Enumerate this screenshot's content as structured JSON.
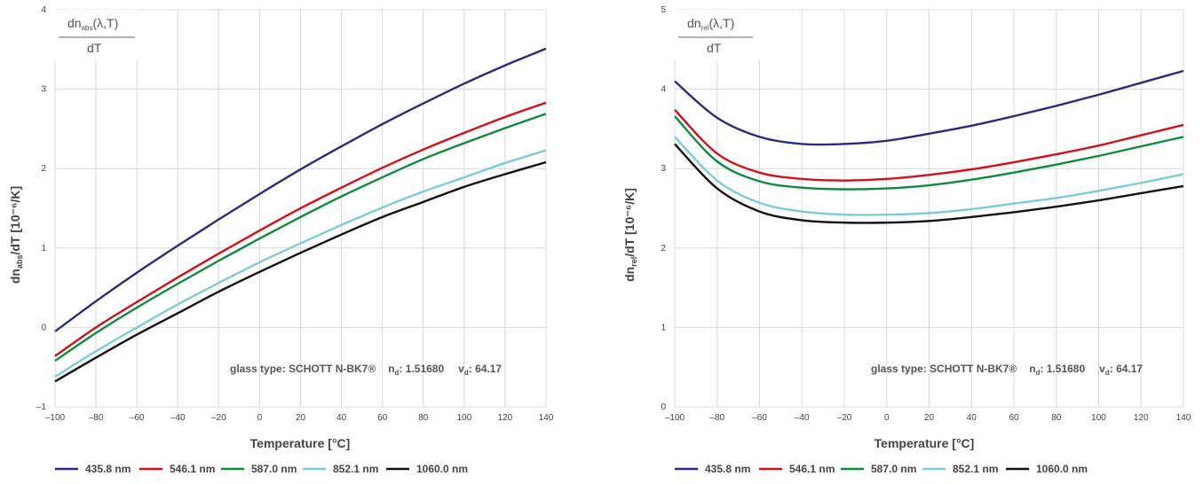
{
  "legend_colors": [
    "#2e2a7a",
    "#d0101c",
    "#0f8a3c",
    "#7ecbd6",
    "#111111"
  ],
  "chart_data": [
    {
      "type": "line",
      "ylabel": {
        "main": "dn",
        "sub": "abs",
        "rest": "/dT [10⁻⁶/K]"
      },
      "xlabel": "Temperature [°C]",
      "formula": {
        "top_main": "dn",
        "top_sub": "abs",
        "top_rest": "(λ,T)",
        "bottom": "dT"
      },
      "annotation": {
        "glass": "glass type: SCHOTT N-BK7®",
        "nd_label": "n",
        "nd_sub": "d",
        "nd_value": ": 1.51680",
        "vd_label": "v",
        "vd_sub": "d",
        "vd_value": ": 64.17"
      },
      "xlim": [
        -100,
        140
      ],
      "ylim": [
        -1,
        4
      ],
      "x_ticks": [
        -100,
        -80,
        -60,
        -40,
        -20,
        0,
        20,
        40,
        60,
        80,
        100,
        120,
        140
      ],
      "x_tick_labels": [
        "–100",
        "–80",
        "–60",
        "–40",
        "–20",
        "0",
        "20",
        "40",
        "60",
        "80",
        "100",
        "120",
        "140"
      ],
      "y_ticks": [
        -1,
        0,
        1,
        2,
        3,
        4
      ],
      "y_tick_labels": [
        "–1",
        "0",
        "1",
        "2",
        "3",
        "4"
      ],
      "grid": true,
      "x": [
        -100,
        -80,
        -60,
        -40,
        -20,
        0,
        20,
        40,
        60,
        80,
        100,
        120,
        140
      ],
      "series": [
        {
          "name": "435.8 nm",
          "values": [
            -0.05,
            0.33,
            0.69,
            1.03,
            1.36,
            1.68,
            1.99,
            2.28,
            2.56,
            2.82,
            3.07,
            3.3,
            3.51
          ]
        },
        {
          "name": "546.1 nm",
          "values": [
            -0.36,
            0.0,
            0.32,
            0.63,
            0.93,
            1.22,
            1.5,
            1.76,
            2.01,
            2.24,
            2.45,
            2.65,
            2.83
          ]
        },
        {
          "name": "587.0 nm",
          "values": [
            -0.42,
            -0.07,
            0.25,
            0.55,
            0.84,
            1.12,
            1.39,
            1.65,
            1.89,
            2.12,
            2.32,
            2.51,
            2.69
          ]
        },
        {
          "name": "852.1 nm",
          "values": [
            -0.62,
            -0.3,
            0.0,
            0.29,
            0.56,
            0.82,
            1.06,
            1.29,
            1.51,
            1.71,
            1.89,
            2.07,
            2.23
          ]
        },
        {
          "name": "1060.0 nm",
          "values": [
            -0.68,
            -0.38,
            -0.09,
            0.18,
            0.45,
            0.7,
            0.94,
            1.17,
            1.39,
            1.58,
            1.77,
            1.93,
            2.08
          ]
        }
      ]
    },
    {
      "type": "line",
      "ylabel": {
        "main": "dn",
        "sub": "rel",
        "rest": "/dT [10⁻⁶/K]"
      },
      "xlabel": "Temperature [°C]",
      "formula": {
        "top_main": "dn",
        "top_sub": "rel",
        "top_rest": "(λ,T)",
        "bottom": "dT"
      },
      "annotation": {
        "glass": "glass type: SCHOTT N-BK7®",
        "nd_label": "n",
        "nd_sub": "d",
        "nd_value": ": 1.51680",
        "vd_label": "v",
        "vd_sub": "d",
        "vd_value": ": 64.17"
      },
      "xlim": [
        -100,
        140
      ],
      "ylim": [
        0,
        5
      ],
      "x_ticks": [
        -100,
        -80,
        -60,
        -40,
        -20,
        0,
        20,
        40,
        60,
        80,
        100,
        120,
        140
      ],
      "x_tick_labels": [
        "–100",
        "–80",
        "–60",
        "–40",
        "–20",
        "0",
        "20",
        "40",
        "60",
        "80",
        "100",
        "120",
        "140"
      ],
      "y_ticks": [
        0,
        1,
        2,
        3,
        4,
        5
      ],
      "y_tick_labels": [
        "0",
        "1",
        "2",
        "3",
        "4",
        "5"
      ],
      "grid": true,
      "x": [
        -100,
        -80,
        -60,
        -40,
        -20,
        0,
        20,
        40,
        60,
        80,
        100,
        120,
        140
      ],
      "series": [
        {
          "name": "435.8 nm",
          "values": [
            4.1,
            3.64,
            3.4,
            3.31,
            3.31,
            3.35,
            3.44,
            3.54,
            3.66,
            3.79,
            3.93,
            4.08,
            4.23
          ]
        },
        {
          "name": "546.1 nm",
          "values": [
            3.74,
            3.19,
            2.95,
            2.87,
            2.85,
            2.87,
            2.92,
            2.99,
            3.08,
            3.18,
            3.29,
            3.42,
            3.55
          ]
        },
        {
          "name": "587.0 nm",
          "values": [
            3.66,
            3.09,
            2.84,
            2.76,
            2.74,
            2.75,
            2.79,
            2.86,
            2.95,
            3.05,
            3.16,
            3.28,
            3.4
          ]
        },
        {
          "name": "852.1 nm",
          "values": [
            3.4,
            2.85,
            2.57,
            2.46,
            2.42,
            2.42,
            2.44,
            2.49,
            2.56,
            2.63,
            2.72,
            2.82,
            2.93
          ]
        },
        {
          "name": "1060.0 nm",
          "values": [
            3.31,
            2.75,
            2.46,
            2.35,
            2.32,
            2.32,
            2.34,
            2.39,
            2.45,
            2.52,
            2.6,
            2.69,
            2.78
          ]
        }
      ]
    }
  ]
}
